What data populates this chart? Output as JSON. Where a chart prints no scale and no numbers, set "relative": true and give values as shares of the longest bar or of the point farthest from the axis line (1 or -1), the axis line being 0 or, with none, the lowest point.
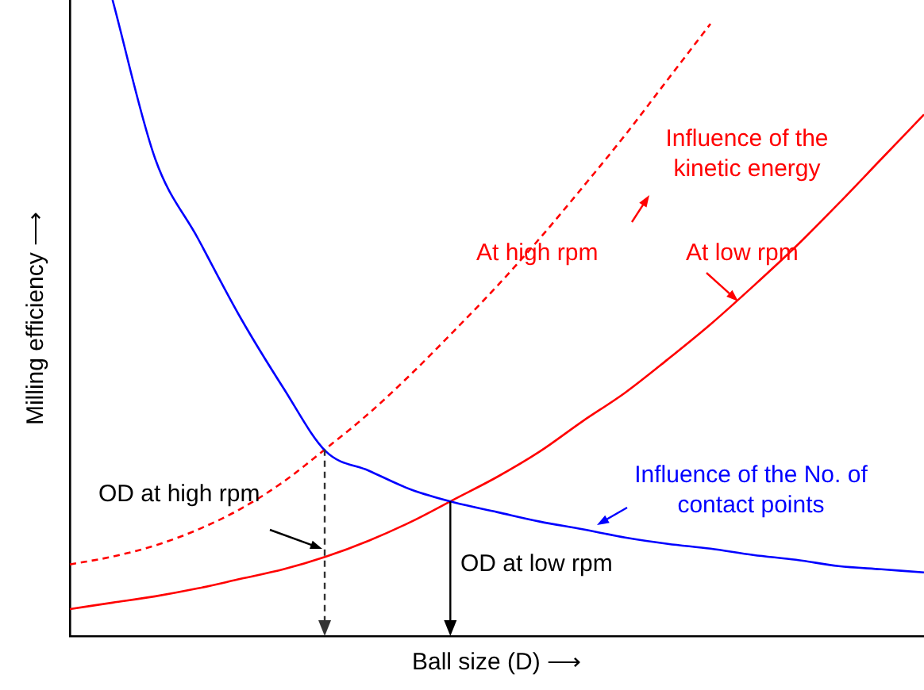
{
  "chart_data": {
    "type": "line",
    "relative": true,
    "xlabel": "Ball size (D) ⟶",
    "ylabel": "Milling efficiency ⟶",
    "categories": [
      null,
      null,
      null,
      null,
      null,
      null,
      null,
      null,
      null,
      null,
      null,
      null,
      null,
      null,
      null,
      null,
      null,
      null,
      null,
      null,
      null
    ],
    "series": [
      {
        "name": "Influence of the No. of contact points",
        "color": "#0000ff",
        "line_style": "solid",
        "values": [
          null,
          1,
          0.75,
          0.625,
          0.5,
          0.39,
          0.29,
          0.26,
          0.23,
          0.21,
          0.195,
          0.18,
          0.168,
          0.155,
          0.145,
          0.1375,
          0.1275,
          0.12,
          0.11,
          0.105,
          0.1
        ]
      },
      {
        "name": "At low rpm",
        "color": "#ff0000",
        "line_style": "solid",
        "values": [
          0.0425,
          0.0525,
          0.0625,
          0.075,
          0.09,
          0.105,
          0.125,
          0.15,
          0.18,
          0.215,
          0.25,
          0.29,
          0.3375,
          0.3825,
          0.435,
          0.49,
          0.55,
          0.6125,
          0.68,
          0.75,
          0.82
        ]
      },
      {
        "name": "At high rpm",
        "color": "#ff0000",
        "line_style": "dashed",
        "values": [
          0.1125,
          0.125,
          0.1425,
          0.1675,
          0.2,
          0.2425,
          0.295,
          0.35,
          0.4125,
          0.48,
          0.55,
          0.625,
          0.705,
          0.7875,
          0.875,
          0.9625,
          null,
          null,
          null,
          null,
          null
        ]
      }
    ],
    "annotations": [
      "Influence of the kinetic energy",
      "OD at high rpm",
      "OD at low rpm"
    ],
    "legend": false,
    "grid": false,
    "marker": "none"
  }
}
